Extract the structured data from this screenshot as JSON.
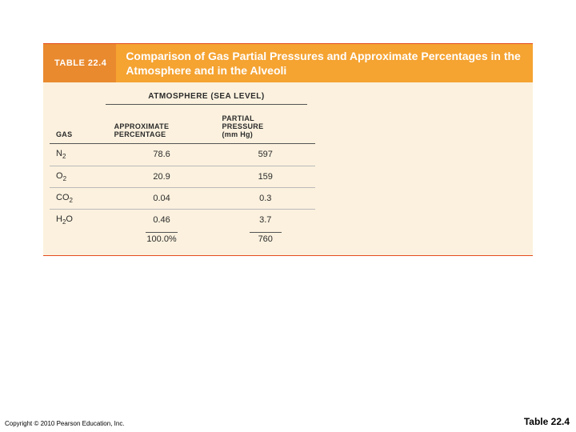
{
  "colors": {
    "rule": "#e44c1e",
    "badge_bg": "#e98a2e",
    "title_bg": "#f5a331",
    "body_bg": "#fbf1de",
    "text_dark": "#2b2b2b"
  },
  "table": {
    "badge": "TABLE 22.4",
    "title": "Comparison of Gas Partial Pressures and Approximate Percentages in the Atmosphere and in the Alveoli",
    "group_header": "ATMOSPHERE (SEA LEVEL)",
    "columns": {
      "gas": "GAS",
      "pct": "APPROXIMATE PERCENTAGE",
      "pp_line1": "PARTIAL",
      "pp_line2": "PRESSURE",
      "pp_line3": "(mm Hg)"
    },
    "rows": [
      {
        "gas_base": "N",
        "gas_sub": "2",
        "pct": "78.6",
        "pp": "597"
      },
      {
        "gas_base": "O",
        "gas_sub": "2",
        "pct": "20.9",
        "pp": "159"
      },
      {
        "gas_base": "CO",
        "gas_sub": "2",
        "pct": "0.04",
        "pp": "0.3"
      },
      {
        "gas_base": "H",
        "gas_sub": "2",
        "gas_tail": "O",
        "pct": "0.46",
        "pp": "3.7"
      }
    ],
    "totals": {
      "pct": "100.0%",
      "pp": "760"
    }
  },
  "footer": "Copyright © 2010 Pearson Education, Inc.",
  "caption": "Table 22.4"
}
